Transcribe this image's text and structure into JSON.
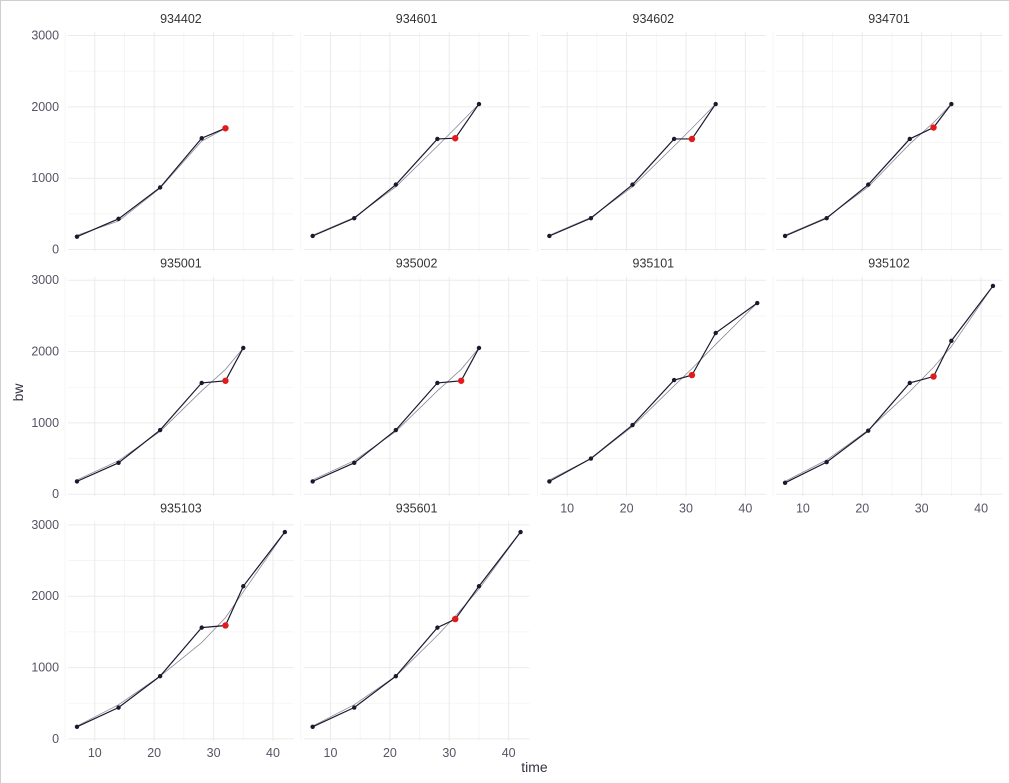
{
  "chart_data": {
    "type": "line",
    "xlabel": "time",
    "ylabel": "bw",
    "xlim": [
      5.5,
      43.5
    ],
    "ylim": [
      -30,
      3050
    ],
    "x_ticks": [
      10,
      20,
      30,
      40
    ],
    "y_ticks": [
      0,
      1000,
      2000,
      3000
    ],
    "grid": true,
    "colors": {
      "observed": "#1a1a2e",
      "fitted": "#8a8a99",
      "highlight": "#e31a1c"
    },
    "panels": [
      {
        "name": "934402",
        "observed": [
          [
            7,
            180
          ],
          [
            14,
            430
          ],
          [
            21,
            870
          ],
          [
            28,
            1560
          ],
          [
            32,
            1700
          ]
        ],
        "fitted": [
          [
            7,
            200
          ],
          [
            14,
            400
          ],
          [
            21,
            860
          ],
          [
            28,
            1520
          ],
          [
            32,
            1700
          ]
        ],
        "highlight": [
          32,
          1700
        ]
      },
      {
        "name": "934601",
        "observed": [
          [
            7,
            190
          ],
          [
            14,
            440
          ],
          [
            21,
            910
          ],
          [
            28,
            1550
          ],
          [
            31,
            1560
          ],
          [
            35,
            2040
          ]
        ],
        "fitted": [
          [
            7,
            200
          ],
          [
            14,
            450
          ],
          [
            21,
            880
          ],
          [
            28,
            1450
          ],
          [
            31,
            1700
          ],
          [
            35,
            2040
          ]
        ],
        "highlight": [
          31,
          1560
        ]
      },
      {
        "name": "934602",
        "observed": [
          [
            7,
            190
          ],
          [
            14,
            440
          ],
          [
            21,
            910
          ],
          [
            28,
            1550
          ],
          [
            31,
            1550
          ],
          [
            35,
            2040
          ]
        ],
        "fitted": [
          [
            7,
            200
          ],
          [
            14,
            450
          ],
          [
            21,
            880
          ],
          [
            28,
            1450
          ],
          [
            31,
            1700
          ],
          [
            35,
            2040
          ]
        ],
        "highlight": [
          31,
          1550
        ]
      },
      {
        "name": "934701",
        "observed": [
          [
            7,
            190
          ],
          [
            14,
            440
          ],
          [
            21,
            910
          ],
          [
            28,
            1550
          ],
          [
            32,
            1710
          ],
          [
            35,
            2040
          ]
        ],
        "fitted": [
          [
            7,
            200
          ],
          [
            14,
            450
          ],
          [
            21,
            880
          ],
          [
            28,
            1480
          ],
          [
            32,
            1780
          ],
          [
            35,
            2040
          ]
        ],
        "highlight": [
          32,
          1710
        ]
      },
      {
        "name": "935001",
        "observed": [
          [
            7,
            180
          ],
          [
            14,
            440
          ],
          [
            21,
            900
          ],
          [
            28,
            1560
          ],
          [
            32,
            1590
          ],
          [
            35,
            2050
          ]
        ],
        "fitted": [
          [
            7,
            200
          ],
          [
            14,
            470
          ],
          [
            21,
            880
          ],
          [
            28,
            1450
          ],
          [
            32,
            1750
          ],
          [
            35,
            2050
          ]
        ],
        "highlight": [
          32,
          1590
        ]
      },
      {
        "name": "935002",
        "observed": [
          [
            7,
            180
          ],
          [
            14,
            440
          ],
          [
            21,
            900
          ],
          [
            28,
            1560
          ],
          [
            32,
            1590
          ],
          [
            35,
            2050
          ]
        ],
        "fitted": [
          [
            7,
            200
          ],
          [
            14,
            470
          ],
          [
            21,
            880
          ],
          [
            28,
            1450
          ],
          [
            32,
            1750
          ],
          [
            35,
            2050
          ]
        ],
        "highlight": [
          32,
          1590
        ]
      },
      {
        "name": "935101",
        "observed": [
          [
            7,
            180
          ],
          [
            14,
            500
          ],
          [
            21,
            970
          ],
          [
            28,
            1600
          ],
          [
            31,
            1670
          ],
          [
            35,
            2260
          ],
          [
            42,
            2680
          ]
        ],
        "fitted": [
          [
            7,
            200
          ],
          [
            14,
            500
          ],
          [
            21,
            950
          ],
          [
            28,
            1520
          ],
          [
            31,
            1760
          ],
          [
            35,
            2100
          ],
          [
            42,
            2680
          ]
        ],
        "highlight": [
          31,
          1670
        ]
      },
      {
        "name": "935102",
        "observed": [
          [
            7,
            160
          ],
          [
            14,
            450
          ],
          [
            21,
            890
          ],
          [
            28,
            1560
          ],
          [
            32,
            1650
          ],
          [
            35,
            2150
          ],
          [
            42,
            2920
          ]
        ],
        "fitted": [
          [
            7,
            180
          ],
          [
            14,
            480
          ],
          [
            21,
            900
          ],
          [
            28,
            1440
          ],
          [
            32,
            1780
          ],
          [
            35,
            2070
          ],
          [
            42,
            2920
          ]
        ],
        "highlight": [
          32,
          1650
        ]
      },
      {
        "name": "935103",
        "observed": [
          [
            7,
            170
          ],
          [
            14,
            440
          ],
          [
            21,
            880
          ],
          [
            28,
            1560
          ],
          [
            32,
            1590
          ],
          [
            35,
            2140
          ],
          [
            42,
            2900
          ]
        ],
        "fitted": [
          [
            7,
            180
          ],
          [
            14,
            480
          ],
          [
            21,
            880
          ],
          [
            28,
            1350
          ],
          [
            32,
            1700
          ],
          [
            35,
            2060
          ],
          [
            42,
            2900
          ]
        ],
        "highlight": [
          32,
          1590
        ]
      },
      {
        "name": "935601",
        "observed": [
          [
            7,
            170
          ],
          [
            14,
            440
          ],
          [
            21,
            880
          ],
          [
            28,
            1560
          ],
          [
            31,
            1680
          ],
          [
            35,
            2140
          ],
          [
            42,
            2900
          ]
        ],
        "fitted": [
          [
            7,
            180
          ],
          [
            14,
            480
          ],
          [
            21,
            880
          ],
          [
            28,
            1450
          ],
          [
            31,
            1720
          ],
          [
            35,
            2100
          ],
          [
            42,
            2900
          ]
        ],
        "highlight": [
          31,
          1680
        ]
      }
    ]
  }
}
